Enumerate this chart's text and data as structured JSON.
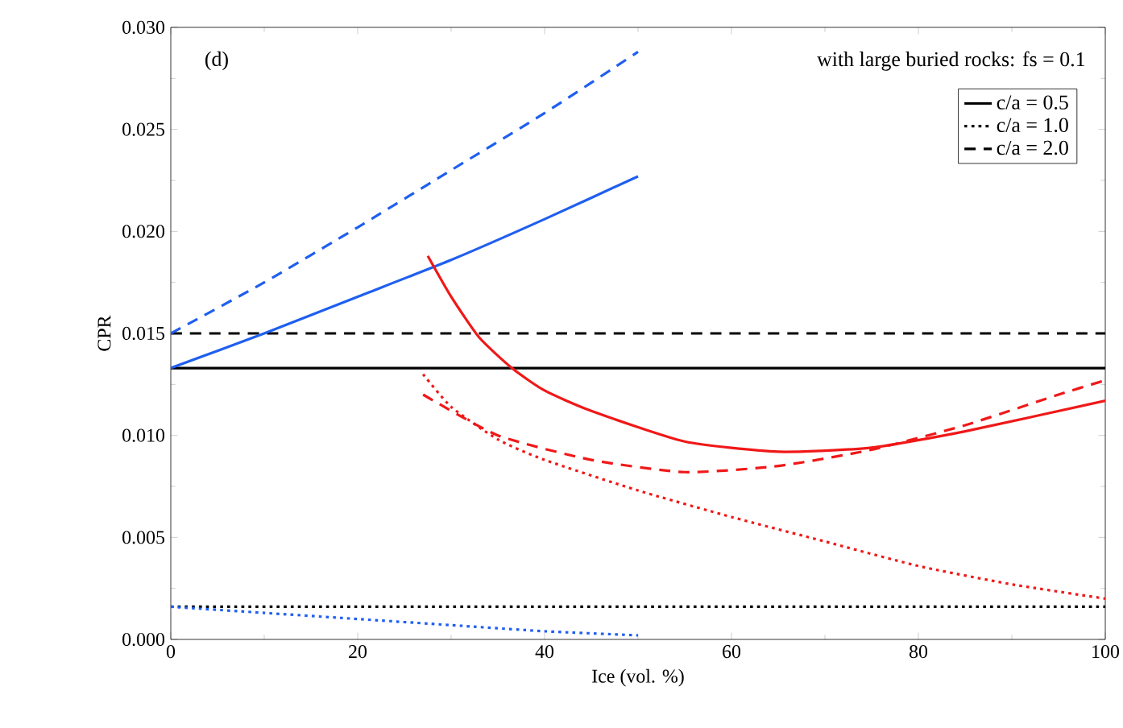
{
  "chart_data": {
    "type": "line",
    "xlabel": "Ice (vol. %)",
    "ylabel": "CPR",
    "annotations": [
      "(d)",
      "with large buried rocks: fs = 0.1"
    ],
    "xlim": [
      0,
      100
    ],
    "xticks": [
      0,
      20,
      40,
      60,
      80,
      100
    ],
    "ylim": [
      0,
      0.03
    ],
    "yticks": [
      {
        "value": 0,
        "label": "0.000"
      },
      {
        "value": 0.005,
        "label": "0.005"
      },
      {
        "value": 0.01,
        "label": "0.010"
      },
      {
        "value": 0.015,
        "label": "0.015"
      },
      {
        "value": 0.02,
        "label": "0.020"
      },
      {
        "value": 0.025,
        "label": "0.025"
      },
      {
        "value": 0.03,
        "label": "0.030"
      }
    ],
    "legend": "top right",
    "grid": false,
    "series": [
      {
        "name": "c/a = 0.5",
        "color": "#000000",
        "line_style": "solid",
        "x": [
          0,
          100
        ],
        "values": [
          0.0133,
          0.0133
        ]
      },
      {
        "name": "c/a = 1.0",
        "color": "#000000",
        "line_style": "dotted",
        "x": [
          0,
          100
        ],
        "values": [
          0.0016,
          0.0016
        ]
      },
      {
        "name": "c/a = 2.0",
        "color": "#000000",
        "line_style": "dashed",
        "x": [
          0,
          100
        ],
        "values": [
          0.015,
          0.015
        ]
      },
      {
        "color": "#1f5ff0",
        "line_style": "solid",
        "x": [
          0,
          10,
          20,
          30,
          40,
          50
        ],
        "values": [
          0.0133,
          0.015,
          0.0168,
          0.0186,
          0.0206,
          0.0227
        ]
      },
      {
        "color": "#1f5ff0",
        "line_style": "dashed",
        "x": [
          0,
          10,
          20,
          30,
          40,
          50
        ],
        "values": [
          0.015,
          0.0175,
          0.0202,
          0.023,
          0.0258,
          0.0288
        ]
      },
      {
        "color": "#1f5ff0",
        "line_style": "dotted",
        "x": [
          0,
          10,
          20,
          30,
          40,
          50
        ],
        "values": [
          0.0016,
          0.0013,
          0.001,
          0.0007,
          0.0004,
          0.0002
        ]
      },
      {
        "color": "#f01818",
        "line_style": "solid",
        "x": [
          27.5,
          30,
          33,
          36.5,
          40,
          45,
          55,
          65,
          75,
          85,
          100
        ],
        "values": [
          0.0188,
          0.0168,
          0.0148,
          0.0133,
          0.0122,
          0.0112,
          0.0097,
          0.0092,
          0.0094,
          0.0102,
          0.0117
        ]
      },
      {
        "color": "#f01818",
        "line_style": "dashed",
        "x": [
          27,
          35,
          45,
          55,
          65,
          75,
          85,
          95,
          100
        ],
        "values": [
          0.012,
          0.01,
          0.0088,
          0.0082,
          0.0085,
          0.0093,
          0.0105,
          0.012,
          0.0127
        ]
      },
      {
        "color": "#f01818",
        "line_style": "dotted",
        "x": [
          27,
          30,
          35,
          40,
          50,
          60,
          70,
          80,
          90,
          100
        ],
        "values": [
          0.013,
          0.0114,
          0.0098,
          0.0088,
          0.0073,
          0.006,
          0.0048,
          0.0036,
          0.0027,
          0.002
        ]
      }
    ]
  }
}
